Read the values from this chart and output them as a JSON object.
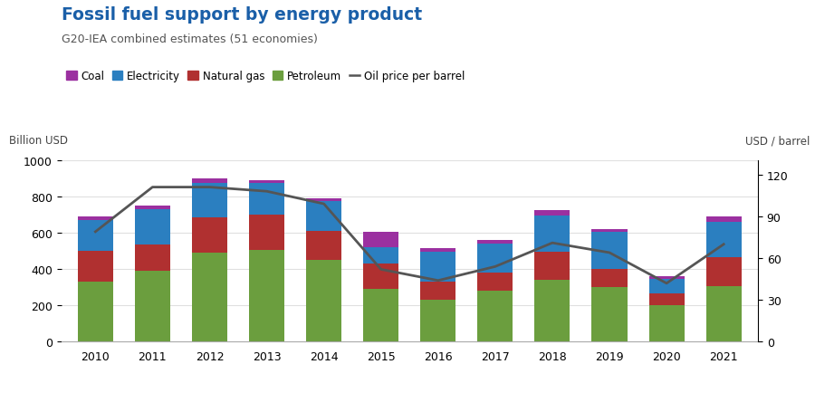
{
  "title": "Fossil fuel support by energy product",
  "subtitle": "G20-IEA combined estimates (51 economies)",
  "years": [
    2010,
    2011,
    2012,
    2013,
    2014,
    2015,
    2016,
    2017,
    2018,
    2019,
    2020,
    2021
  ],
  "petroleum": [
    330,
    390,
    490,
    505,
    450,
    290,
    230,
    280,
    340,
    300,
    200,
    305
  ],
  "natural_gas": [
    170,
    145,
    195,
    195,
    160,
    140,
    100,
    100,
    155,
    100,
    65,
    160
  ],
  "electricity": [
    170,
    195,
    190,
    175,
    165,
    90,
    165,
    160,
    200,
    205,
    80,
    195
  ],
  "coal": [
    20,
    20,
    25,
    15,
    15,
    85,
    20,
    20,
    30,
    15,
    15,
    30
  ],
  "oil_price": [
    79,
    111,
    111,
    108,
    99,
    52,
    44,
    54,
    71,
    64,
    42,
    70
  ],
  "colors": {
    "petroleum": "#6b9e3e",
    "natural_gas": "#b03030",
    "electricity": "#2b7fc0",
    "coal": "#9b30a0"
  },
  "oil_line_color": "#555555",
  "ylabel_left": "Billion USD",
  "ylabel_right": "USD / barrel",
  "ylim_left": [
    0,
    1000
  ],
  "ylim_right": [
    0,
    130
  ],
  "yticks_left": [
    0,
    200,
    400,
    600,
    800,
    1000
  ],
  "yticks_right": [
    0,
    30,
    60,
    90,
    120
  ],
  "title_color": "#1a5fa8",
  "subtitle_color": "#555555",
  "background_color": "#ffffff"
}
